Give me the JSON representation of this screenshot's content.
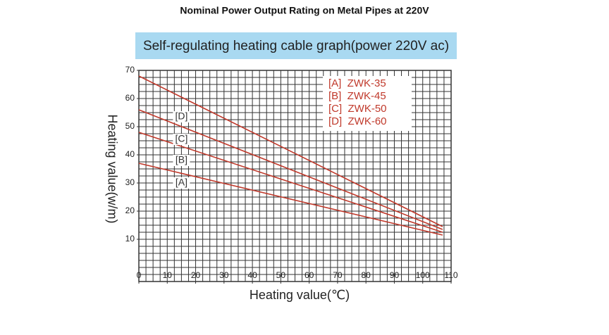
{
  "chart_data": {
    "type": "line",
    "title": "Nominal Power Output Rating on Metal Pipes at 220V",
    "subtitle": "Self-regulating heating cable graph(power 220V ac)",
    "x_label": "Heating value(℃)",
    "y_label": "Heating value(w/m)",
    "x": [
      0,
      107
    ],
    "series": [
      {
        "name": "[A]  ZWK-35",
        "color": "#c0392b",
        "values": [
          37,
          11.5
        ]
      },
      {
        "name": "[B]  ZWK-45",
        "color": "#c0392b",
        "values": [
          48,
          12.5
        ]
      },
      {
        "name": "[C]  ZWK-50",
        "color": "#c0392b",
        "values": [
          56,
          13.5
        ]
      },
      {
        "name": "[D]  ZWK-60",
        "color": "#c0392b",
        "values": [
          68,
          14.5
        ]
      }
    ],
    "annotations": [
      {
        "text": "[D]",
        "x": 15,
        "y": 53.5
      },
      {
        "text": "[C]",
        "x": 15,
        "y": 45.5
      },
      {
        "text": "[B]",
        "x": 15,
        "y": 38
      },
      {
        "text": "[A]",
        "x": 15,
        "y": 30
      }
    ],
    "xlim": [
      0,
      110
    ],
    "ylim": [
      -5,
      70
    ],
    "xticks": [
      0,
      10,
      20,
      30,
      40,
      50,
      60,
      70,
      80,
      90,
      100,
      110
    ],
    "yticks": [
      10,
      20,
      30,
      40,
      50,
      60,
      70
    ],
    "grid": true,
    "legend": "upper right"
  }
}
